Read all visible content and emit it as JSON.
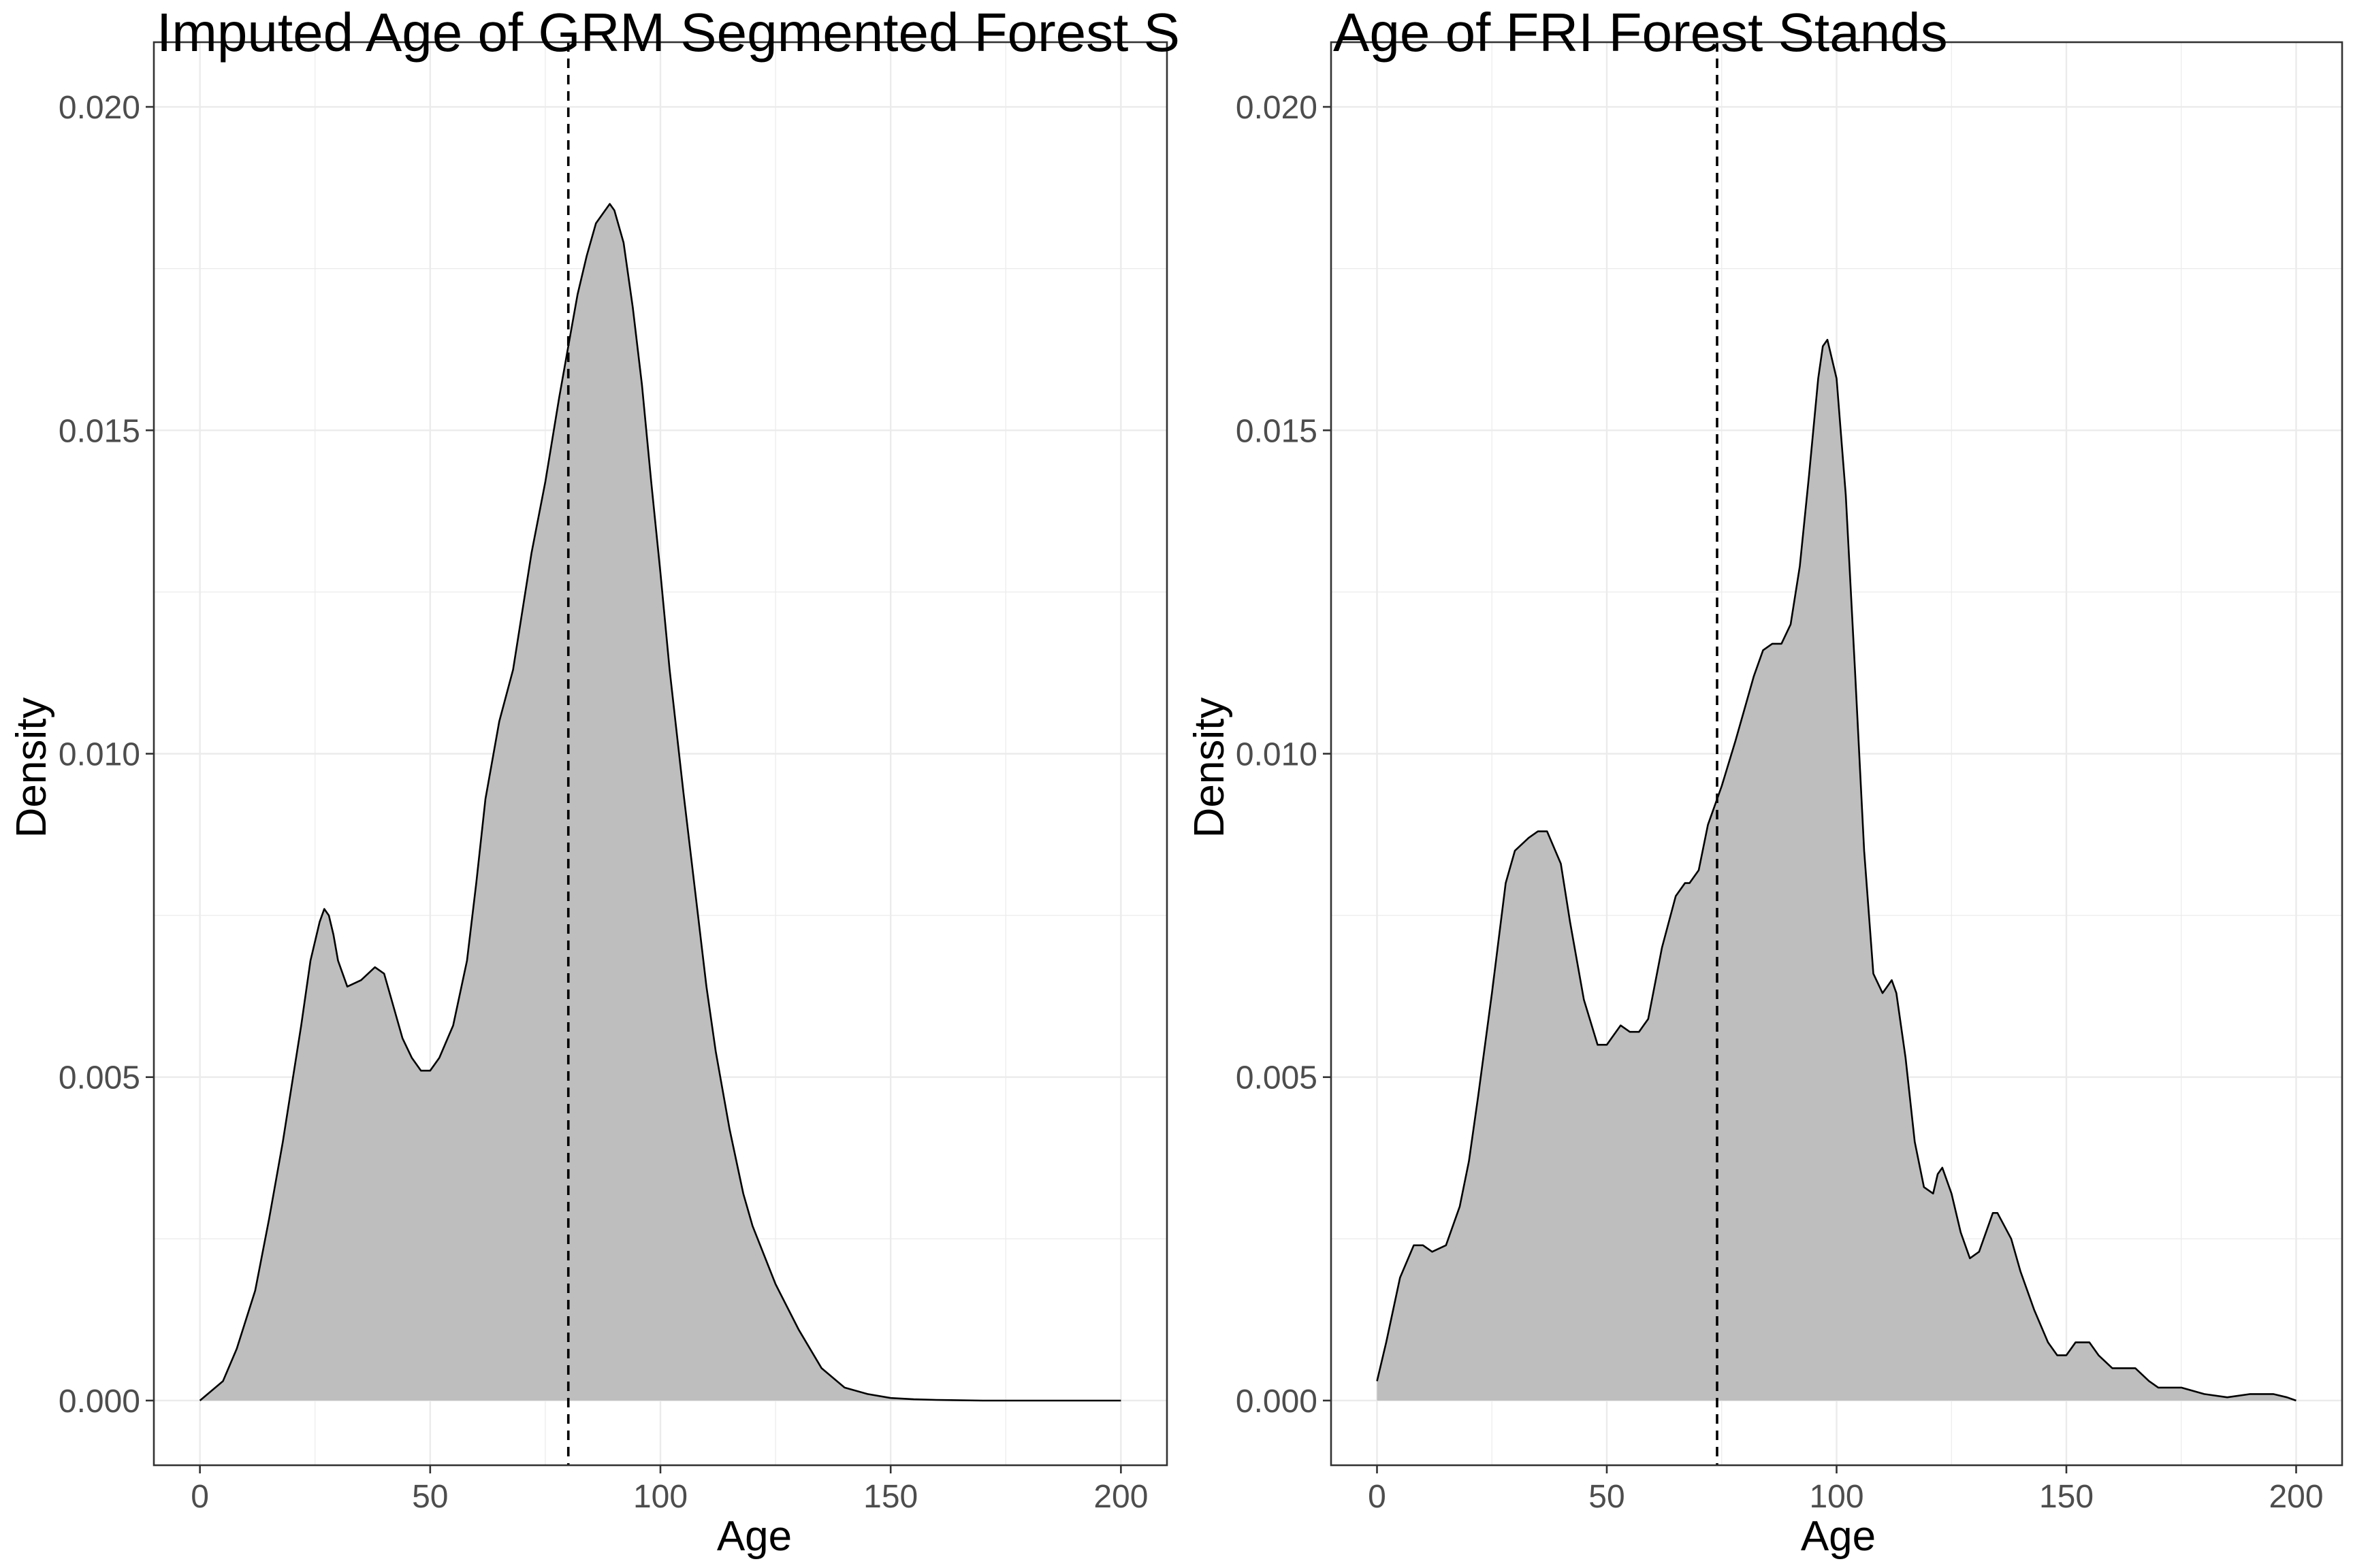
{
  "figure": {
    "panels": [
      {
        "title": "Imputed Age of GRM Segmented Forest S",
        "xlabel": "Age",
        "ylabel": "Density"
      },
      {
        "title": "Age of FRI Forest Stands",
        "xlabel": "Age",
        "ylabel": "Density"
      }
    ]
  },
  "style": {
    "fill_color": "#bebebe",
    "line_color": "#000000",
    "grid_color": "#ebebeb",
    "panel_border_color": "#333333",
    "tick_label_color": "#4d4d4d"
  },
  "chart_data": [
    {
      "type": "area",
      "title": "Imputed Age of GRM Segmented Forest S",
      "xlabel": "Age",
      "ylabel": "Density",
      "xlim": [
        -10,
        210
      ],
      "ylim": [
        -0.001,
        0.021
      ],
      "x_ticks": [
        0,
        50,
        100,
        150,
        200
      ],
      "x_tick_labels": [
        "0",
        "50",
        "100",
        "150",
        "200"
      ],
      "y_ticks": [
        0,
        0.005,
        0.01,
        0.015,
        0.02
      ],
      "y_tick_labels": [
        "0.000",
        "0.005",
        "0.010",
        "0.015",
        "0.020"
      ],
      "grid": true,
      "legend": "none",
      "x": [
        0,
        5,
        8,
        12,
        15,
        18,
        20,
        22,
        24,
        26,
        27,
        28,
        29,
        30,
        32,
        35,
        38,
        40,
        42,
        44,
        46,
        48,
        50,
        52,
        55,
        58,
        60,
        62,
        65,
        68,
        70,
        72,
        75,
        78,
        80,
        82,
        84,
        86,
        88,
        89,
        90,
        92,
        94,
        96,
        98,
        100,
        102,
        105,
        108,
        110,
        112,
        115,
        118,
        120,
        125,
        130,
        135,
        140,
        145,
        150,
        155,
        160,
        170,
        180,
        190,
        200
      ],
      "y": [
        0,
        0.0003,
        0.0008,
        0.0017,
        0.0028,
        0.004,
        0.0049,
        0.0058,
        0.0068,
        0.0074,
        0.0076,
        0.0075,
        0.0072,
        0.0068,
        0.0064,
        0.0065,
        0.0067,
        0.0066,
        0.0061,
        0.0056,
        0.0053,
        0.0051,
        0.0051,
        0.0053,
        0.0058,
        0.0068,
        0.008,
        0.0093,
        0.0105,
        0.0113,
        0.0122,
        0.0131,
        0.0142,
        0.0155,
        0.0163,
        0.0171,
        0.0177,
        0.0182,
        0.0184,
        0.0185,
        0.0184,
        0.0179,
        0.0169,
        0.0157,
        0.0142,
        0.0128,
        0.0113,
        0.0094,
        0.0076,
        0.0064,
        0.0054,
        0.0042,
        0.0032,
        0.0027,
        0.0018,
        0.0011,
        0.0005,
        0.0002,
        0.0001,
        4e-05,
        2e-05,
        1e-05,
        0,
        0,
        0,
        0
      ],
      "reference_line": {
        "x": 80,
        "style": "dashed"
      }
    },
    {
      "type": "area",
      "title": "Age of FRI Forest Stands",
      "xlabel": "Age",
      "ylabel": "Density",
      "xlim": [
        -10,
        210
      ],
      "ylim": [
        -0.001,
        0.021
      ],
      "x_ticks": [
        0,
        50,
        100,
        150,
        200
      ],
      "x_tick_labels": [
        "0",
        "50",
        "100",
        "150",
        "200"
      ],
      "y_ticks": [
        0,
        0.005,
        0.01,
        0.015,
        0.02
      ],
      "y_tick_labels": [
        "0.000",
        "0.005",
        "0.010",
        "0.015",
        "0.020"
      ],
      "grid": true,
      "legend": "none",
      "x": [
        0,
        2,
        5,
        8,
        10,
        12,
        15,
        18,
        20,
        22,
        25,
        28,
        30,
        33,
        35,
        37,
        40,
        42,
        45,
        48,
        50,
        52,
        53,
        55,
        57,
        59,
        62,
        65,
        67,
        68,
        70,
        72,
        75,
        78,
        80,
        82,
        84,
        86,
        88,
        90,
        92,
        94,
        96,
        97,
        98,
        100,
        102,
        104,
        106,
        108,
        110,
        111,
        112,
        113,
        115,
        117,
        119,
        121,
        122,
        123,
        125,
        127,
        129,
        131,
        133,
        134,
        135,
        138,
        140,
        143,
        146,
        148,
        150,
        152,
        153,
        155,
        157,
        160,
        162,
        163,
        165,
        168,
        170,
        175,
        180,
        185,
        190,
        195,
        198,
        200
      ],
      "y": [
        0.0003,
        0.0009,
        0.0019,
        0.0024,
        0.0024,
        0.0023,
        0.0024,
        0.003,
        0.0037,
        0.0047,
        0.0063,
        0.008,
        0.0085,
        0.0087,
        0.0088,
        0.0088,
        0.0083,
        0.0074,
        0.0062,
        0.0055,
        0.0055,
        0.0057,
        0.0058,
        0.0057,
        0.0057,
        0.0059,
        0.007,
        0.0078,
        0.008,
        0.008,
        0.0082,
        0.0089,
        0.0095,
        0.0102,
        0.0107,
        0.0112,
        0.0116,
        0.0117,
        0.0117,
        0.012,
        0.0129,
        0.0143,
        0.0158,
        0.0163,
        0.0164,
        0.0158,
        0.014,
        0.0113,
        0.0085,
        0.0066,
        0.0063,
        0.0064,
        0.0065,
        0.0063,
        0.0053,
        0.004,
        0.0033,
        0.0032,
        0.0035,
        0.0036,
        0.0032,
        0.0026,
        0.0022,
        0.0023,
        0.0027,
        0.0029,
        0.0029,
        0.0025,
        0.002,
        0.0014,
        0.0009,
        0.0007,
        0.0007,
        0.0009,
        0.0009,
        0.0009,
        0.0007,
        0.0005,
        0.0005,
        0.0005,
        0.0005,
        0.0003,
        0.0002,
        0.0002,
        0.0001,
        5e-05,
        0.0001,
        0.0001,
        5e-05,
        0
      ],
      "reference_line": {
        "x": 74,
        "style": "dashed"
      }
    }
  ]
}
